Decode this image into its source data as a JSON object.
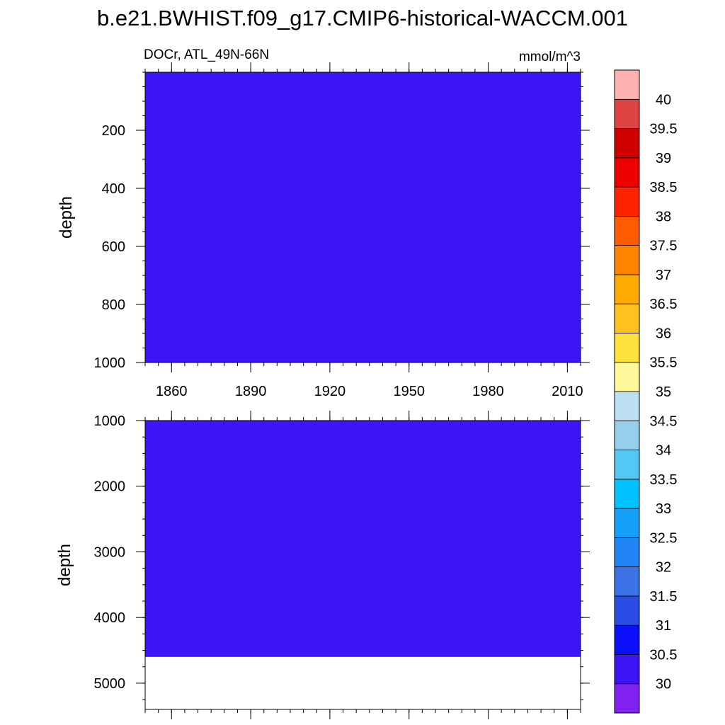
{
  "chart_data": {
    "type": "heatmap",
    "title": "b.e21.BWHIST.f09_g17.CMIP6-historical-WACCM.001",
    "left_label": "DOCr, ATL_49N-66N",
    "units": "mmol/m^3",
    "x_ticks": [
      "1860",
      "1890",
      "1920",
      "1950",
      "1980",
      "2010"
    ],
    "x_tick_values": [
      1860,
      1890,
      1920,
      1950,
      1980,
      2010
    ],
    "xlim": [
      1850,
      2015
    ],
    "colorbar": {
      "labels": [
        "30",
        "30.5",
        "31",
        "31.5",
        "32",
        "32.5",
        "33",
        "33.5",
        "34",
        "34.5",
        "35",
        "35.5",
        "36",
        "36.5",
        "37",
        "37.5",
        "38",
        "38.5",
        "39",
        "39.5",
        "40"
      ],
      "colors": [
        "#8122f0",
        "#3c14f5",
        "#0c10fa",
        "#2b4de6",
        "#3b72e6",
        "#2384f5",
        "#15a0fa",
        "#00c2ff",
        "#54c8f5",
        "#96cfec",
        "#bde0f2",
        "#fff79a",
        "#ffe23d",
        "#ffc21e",
        "#ffaa00",
        "#ff8500",
        "#ff5c00",
        "#ff2400",
        "#ee0000",
        "#d10000",
        "#de4444",
        "#ffb2b2"
      ]
    },
    "panels": [
      {
        "name": "upper",
        "ylabel": "depth",
        "ylim": [
          0,
          1000
        ],
        "y_ticks": [
          "200",
          "400",
          "600",
          "800",
          "1000"
        ],
        "y_tick_values": [
          200,
          400,
          600,
          800,
          1000
        ],
        "fill_value_min": 30,
        "fill_depth_max": 1000,
        "show_x_labels": true
      },
      {
        "name": "lower",
        "ylabel": "depth",
        "ylim": [
          1000,
          5400
        ],
        "y_ticks": [
          "1000",
          "2000",
          "3000",
          "4000",
          "5000"
        ],
        "y_tick_values": [
          1000,
          2000,
          3000,
          4000,
          5000
        ],
        "fill_value_min": 30,
        "fill_depth_max": 4600,
        "show_x_labels": false
      }
    ]
  }
}
